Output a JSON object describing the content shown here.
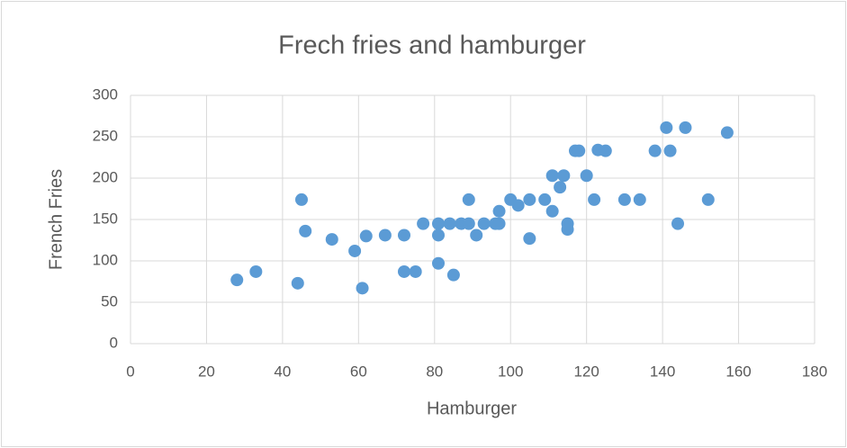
{
  "chart_data": {
    "type": "scatter",
    "title": "Frech fries and hamburger",
    "x_label": "Hamburger",
    "y_label": "French Fries",
    "series": [
      {
        "name": "French Fries",
        "color": "#5b9bd5",
        "x": [
          28,
          33,
          44,
          45,
          46,
          53,
          59,
          61,
          62,
          67,
          72,
          72,
          75,
          77,
          81,
          81,
          81,
          84,
          85,
          87,
          89,
          89,
          91,
          93,
          96,
          97,
          97,
          100,
          102,
          105,
          105,
          109,
          111,
          111,
          113,
          114,
          115,
          115,
          117,
          118,
          120,
          122,
          123,
          125,
          130,
          134,
          138,
          141,
          142,
          144,
          146,
          152,
          157
        ],
        "values": [
          77,
          87,
          73,
          174,
          136,
          126,
          112,
          67,
          130,
          131,
          131,
          87,
          87,
          145,
          145,
          131,
          97,
          145,
          83,
          145,
          145,
          174,
          131,
          145,
          145,
          145,
          160,
          174,
          167,
          174,
          127,
          174,
          203,
          160,
          189,
          203,
          145,
          138,
          233,
          233,
          203,
          174,
          234,
          233,
          174,
          174,
          233,
          261,
          233,
          145,
          261,
          174,
          255
        ]
      }
    ],
    "xlim": [
      0,
      180
    ],
    "xticks": [
      0,
      20,
      40,
      60,
      80,
      100,
      120,
      140,
      160,
      180
    ],
    "ylim": [
      0,
      300
    ],
    "yticks": [
      0,
      50,
      100,
      150,
      200,
      250,
      300
    ],
    "grid": true
  }
}
